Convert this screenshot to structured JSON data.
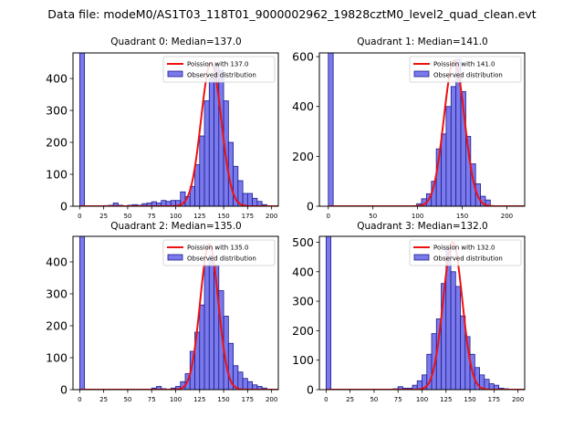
{
  "figure": {
    "suptitle": "Data file: modeM0/AS1T03_118T01_9000002962_19828cztM0_level2_quad_clean.evt"
  },
  "colors": {
    "bar_fill": "#7a7aec",
    "bar_edge": "#1b1b8c",
    "fit_line": "#ee1111",
    "axis": "#000000"
  },
  "chart_data": [
    {
      "type": "bar",
      "title": "Quadrant 0: Median=137.0",
      "xlim": [
        -7,
        207
      ],
      "ylim": [
        0,
        480
      ],
      "xticks": [
        0,
        25,
        50,
        75,
        100,
        125,
        150,
        175,
        200
      ],
      "yticks": [
        0,
        100,
        200,
        300,
        400
      ],
      "bin_width": 5,
      "legend": {
        "position": "top-right",
        "line_label": "Poission with 137.0",
        "bar_label": "Observed distribution"
      },
      "hist": {
        "left_edges": [
          0,
          25,
          30,
          35,
          40,
          50,
          55,
          60,
          65,
          70,
          75,
          80,
          85,
          90,
          95,
          100,
          105,
          110,
          115,
          120,
          125,
          130,
          135,
          140,
          145,
          150,
          155,
          160,
          165,
          170,
          175,
          180,
          185,
          190
        ],
        "counts": [
          480,
          2,
          3,
          10,
          3,
          3,
          5,
          3,
          8,
          10,
          14,
          10,
          18,
          15,
          18,
          18,
          45,
          30,
          62,
          130,
          220,
          330,
          400,
          445,
          425,
          330,
          200,
          125,
          80,
          40,
          40,
          25,
          15,
          5
        ]
      },
      "poisson": {
        "mean": 137.0,
        "peak": 450,
        "sigma": 10.5
      }
    },
    {
      "type": "bar",
      "title": "Quadrant 1: Median=141.0",
      "xlim": [
        -10,
        220
      ],
      "ylim": [
        0,
        615
      ],
      "xticks": [
        0,
        50,
        100,
        150,
        200
      ],
      "yticks": [
        0,
        200,
        400,
        600
      ],
      "bin_width": 5.5,
      "legend": {
        "position": "top-right",
        "line_label": "Poission with 141.0",
        "bar_label": "Observed distribution"
      },
      "hist": {
        "left_edges": [
          0,
          99,
          104.5,
          110,
          115.5,
          121,
          126.5,
          132,
          137.5,
          143,
          148.5,
          154,
          159.5,
          165,
          170.5,
          176
        ],
        "counts": [
          615,
          10,
          30,
          50,
          100,
          230,
          290,
          400,
          480,
          590,
          460,
          280,
          170,
          90,
          40,
          25
        ]
      },
      "poisson": {
        "mean": 141.0,
        "peak": 585,
        "sigma": 11.5
      }
    },
    {
      "type": "bar",
      "title": "Quadrant 2: Median=135.0",
      "xlim": [
        -7,
        207
      ],
      "ylim": [
        0,
        480
      ],
      "xticks": [
        0,
        25,
        50,
        75,
        100,
        125,
        150,
        175,
        200
      ],
      "yticks": [
        0,
        100,
        200,
        300,
        400
      ],
      "bin_width": 5,
      "legend": {
        "position": "top-right",
        "line_label": "Poission with 135.0",
        "bar_label": "Observed distribution"
      },
      "hist": {
        "left_edges": [
          0,
          75,
          80,
          85,
          95,
          100,
          105,
          110,
          115,
          120,
          125,
          130,
          135,
          140,
          145,
          150,
          155,
          160,
          165,
          170,
          175,
          180,
          185,
          190
        ],
        "counts": [
          480,
          5,
          10,
          3,
          5,
          10,
          25,
          50,
          120,
          180,
          265,
          390,
          420,
          390,
          310,
          230,
          145,
          75,
          55,
          35,
          25,
          15,
          10,
          5
        ]
      },
      "poisson": {
        "mean": 135.0,
        "peak": 455,
        "sigma": 9.5
      }
    },
    {
      "type": "bar",
      "title": "Quadrant 3: Median=132.0",
      "xlim": [
        -7,
        207
      ],
      "ylim": [
        0,
        520
      ],
      "xticks": [
        0,
        25,
        50,
        75,
        100,
        125,
        150,
        175,
        200
      ],
      "yticks": [
        0,
        100,
        200,
        300,
        400,
        500
      ],
      "bin_width": 5,
      "legend": {
        "position": "top-right",
        "line_label": "Poission with 132.0",
        "bar_label": "Observed distribution"
      },
      "hist": {
        "left_edges": [
          0,
          70,
          75,
          80,
          85,
          90,
          95,
          100,
          105,
          110,
          115,
          120,
          125,
          130,
          135,
          140,
          145,
          150,
          155,
          160,
          165,
          170,
          175,
          180,
          185
        ],
        "counts": [
          520,
          3,
          10,
          5,
          5,
          15,
          30,
          50,
          120,
          190,
          240,
          360,
          480,
          400,
          350,
          250,
          180,
          120,
          75,
          50,
          35,
          20,
          15,
          5,
          3
        ]
      },
      "poisson": {
        "mean": 132.0,
        "peak": 500,
        "sigma": 10.0
      }
    }
  ]
}
